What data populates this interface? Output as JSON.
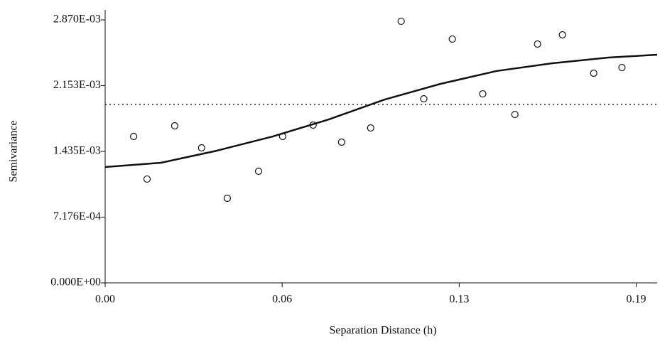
{
  "chart_data": {
    "type": "scatter",
    "x_label": "Separation Distance (h)",
    "y_label": "Semivariance",
    "xlim": [
      0,
      0.1975
    ],
    "xticks": [
      {
        "value": 0,
        "label": "0.00"
      },
      {
        "value": 0.06333,
        "label": "0.06"
      },
      {
        "value": 0.12667,
        "label": "0.13"
      },
      {
        "value": 0.19,
        "label": "0.19"
      }
    ],
    "ylim": [
      0,
      0.00287
    ],
    "yticks": [
      {
        "value": 0,
        "label": "0.000E+00"
      },
      {
        "value": 0.0007176,
        "label": "7.176E-04"
      },
      {
        "value": 0.001435,
        "label": "1.435E-03"
      },
      {
        "value": 0.002153,
        "label": "2.153E-03"
      },
      {
        "value": 0.00287,
        "label": "2.870E-03"
      }
    ],
    "series": [
      {
        "type": "scatter",
        "color": "#111111",
        "x": [
          0.0102,
          0.015,
          0.0249,
          0.0345,
          0.0437,
          0.0549,
          0.0635,
          0.0744,
          0.0846,
          0.095,
          0.1059,
          0.114,
          0.1242,
          0.1351,
          0.1466,
          0.1547,
          0.1636,
          0.1748,
          0.1849
        ],
        "values": [
          0.001598,
          0.001133,
          0.001714,
          0.001474,
          0.000923,
          0.001218,
          0.001598,
          0.001722,
          0.001536,
          0.001691,
          0.002855,
          0.002009,
          0.002661,
          0.002063,
          0.001838,
          0.002606,
          0.002707,
          0.002288,
          0.00235
        ]
      },
      {
        "type": "line",
        "color": "#111111",
        "x": [
          0,
          0.02,
          0.04,
          0.06,
          0.08,
          0.1,
          0.12,
          0.14,
          0.16,
          0.18,
          0.1975
        ],
        "values": [
          0.001264,
          0.001311,
          0.001443,
          0.001598,
          0.001784,
          0.002001,
          0.002172,
          0.002312,
          0.002397,
          0.002459,
          0.00249
        ]
      }
    ],
    "reference_line": {
      "value": 0.001947,
      "style": "dotted",
      "color": "#222222"
    }
  }
}
